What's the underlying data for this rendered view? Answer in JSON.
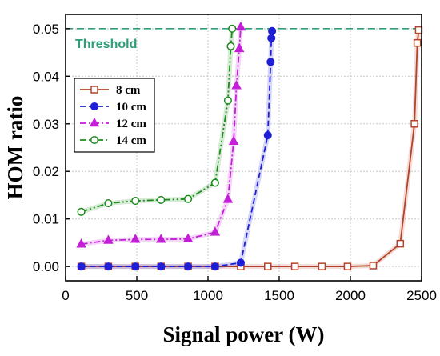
{
  "chart_data": {
    "type": "line",
    "xlabel": "Signal power (W)",
    "ylabel": "HOM ratio",
    "xlim": [
      0,
      2500
    ],
    "ylim": [
      -0.003,
      0.053
    ],
    "xticks": [
      0,
      500,
      1000,
      1500,
      2000,
      2500
    ],
    "yticks": [
      0.0,
      0.01,
      0.02,
      0.03,
      0.04,
      0.05
    ],
    "ytick_labels": [
      "0.00",
      "0.01",
      "0.02",
      "0.03",
      "0.04",
      "0.05"
    ],
    "grid": true,
    "legend_position": "upper-left",
    "threshold": {
      "label": "Threshold",
      "value": 0.05,
      "color": "#2e9e7a"
    },
    "series": [
      {
        "name": "8 cm",
        "color": "#b5432a",
        "marker": "square",
        "dash": "solid",
        "x": [
          110,
          300,
          490,
          670,
          860,
          1050,
          1230,
          1420,
          1610,
          1800,
          1980,
          2160,
          2350,
          2450,
          2470,
          2480
        ],
        "y": [
          0,
          0,
          0,
          0,
          0,
          0,
          0,
          0,
          0,
          0,
          0,
          0.0002,
          0.0048,
          0.03,
          0.047,
          0.0497
        ]
      },
      {
        "name": "10 cm",
        "color": "#1f1fd6",
        "marker": "circle-filled",
        "dash": "dashed",
        "x": [
          110,
          300,
          490,
          670,
          860,
          1050,
          1230,
          1420,
          1440,
          1445,
          1450
        ],
        "y": [
          0,
          0,
          0,
          0,
          0,
          0,
          0.0008,
          0.0276,
          0.043,
          0.048,
          0.0495
        ]
      },
      {
        "name": "12 cm",
        "color": "#c21fd6",
        "marker": "triangle-filled",
        "dash": "dashdot",
        "x": [
          110,
          300,
          490,
          670,
          860,
          1050,
          1140,
          1180,
          1200,
          1220,
          1230
        ],
        "y": [
          0.0047,
          0.0055,
          0.0057,
          0.0057,
          0.0058,
          0.0072,
          0.0141,
          0.0263,
          0.038,
          0.0458,
          0.0503
        ]
      },
      {
        "name": "14 cm",
        "color": "#1e8a1e",
        "marker": "circle-open",
        "dash": "dashdotdot",
        "x": [
          110,
          300,
          490,
          670,
          860,
          1050,
          1140,
          1160,
          1170
        ],
        "y": [
          0.0115,
          0.0133,
          0.0138,
          0.014,
          0.0142,
          0.0176,
          0.0349,
          0.0463,
          0.05
        ]
      }
    ]
  }
}
